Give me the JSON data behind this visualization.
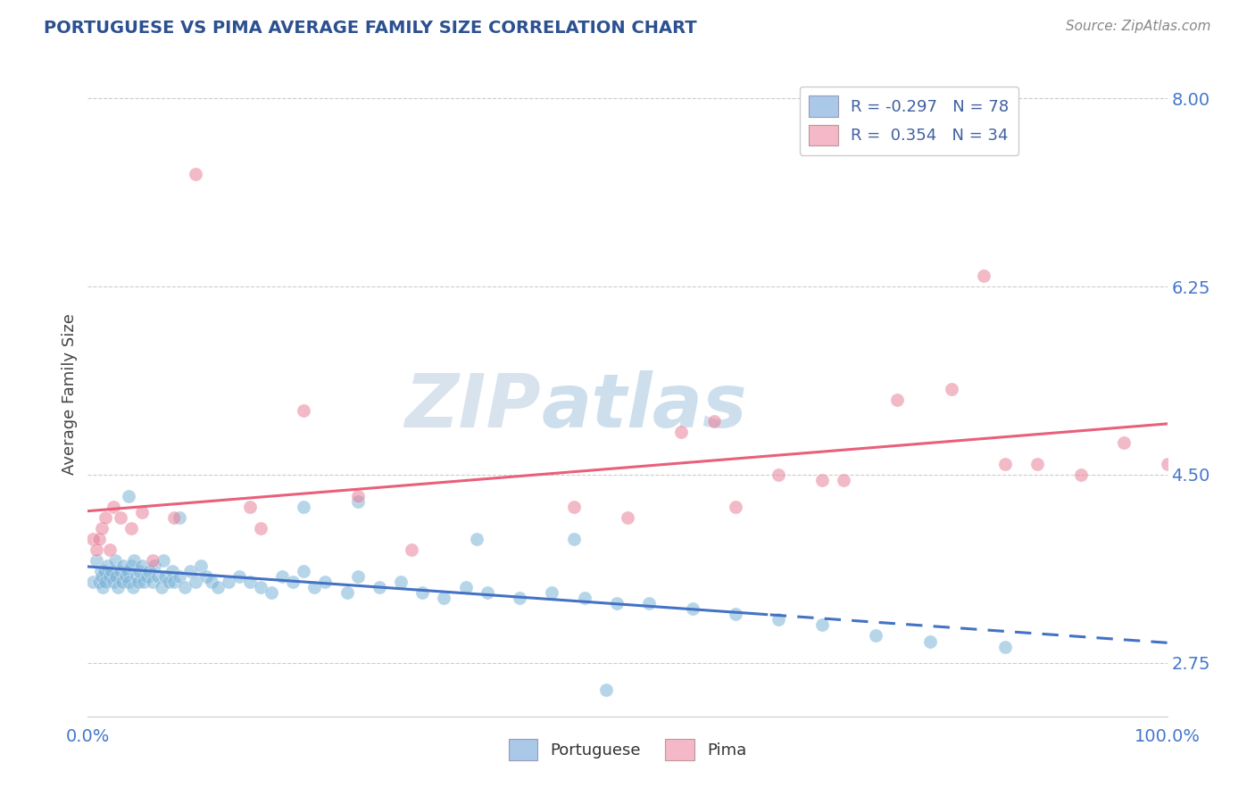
{
  "title": "PORTUGUESE VS PIMA AVERAGE FAMILY SIZE CORRELATION CHART",
  "source_text": "Source: ZipAtlas.com",
  "ylabel": "Average Family Size",
  "xlim": [
    0,
    1
  ],
  "ylim": [
    2.25,
    8.25
  ],
  "yticks": [
    2.75,
    4.5,
    6.25,
    8.0
  ],
  "yticklabels": [
    "2.75",
    "4.50",
    "6.25",
    "8.00"
  ],
  "xticks": [
    0.0,
    1.0
  ],
  "xticklabels": [
    "0.0%",
    "100.0%"
  ],
  "watermark_zip": "ZIP",
  "watermark_atlas": "atlas",
  "legend_label_blue": "R = -0.297   N = 78",
  "legend_label_pink": "R =  0.354   N = 34",
  "blue_scatter_color": "#7ab3d8",
  "pink_scatter_color": "#e8809a",
  "blue_legend_color": "#aac8e8",
  "pink_legend_color": "#f4b8c8",
  "blue_line_color": "#4472c4",
  "pink_line_color": "#e8607a",
  "title_color": "#2c5090",
  "source_color": "#888888",
  "axis_label_color": "#444444",
  "tick_color": "#4477cc",
  "grid_color": "#cccccc",
  "background_color": "#ffffff",
  "blue_scatter_alpha": 0.55,
  "pink_scatter_alpha": 0.55,
  "dot_size": 120,
  "line_width": 2.2,
  "solid_to_dash_split": 0.63,
  "blue_x": [
    0.005,
    0.008,
    0.01,
    0.012,
    0.013,
    0.014,
    0.015,
    0.016,
    0.018,
    0.02,
    0.022,
    0.024,
    0.025,
    0.026,
    0.028,
    0.03,
    0.032,
    0.033,
    0.035,
    0.037,
    0.038,
    0.04,
    0.042,
    0.043,
    0.045,
    0.047,
    0.048,
    0.05,
    0.052,
    0.055,
    0.057,
    0.06,
    0.062,
    0.065,
    0.068,
    0.07,
    0.072,
    0.075,
    0.078,
    0.08,
    0.085,
    0.09,
    0.095,
    0.1,
    0.105,
    0.11,
    0.115,
    0.12,
    0.13,
    0.14,
    0.15,
    0.16,
    0.17,
    0.18,
    0.19,
    0.2,
    0.21,
    0.22,
    0.24,
    0.25,
    0.27,
    0.29,
    0.31,
    0.33,
    0.35,
    0.37,
    0.4,
    0.43,
    0.46,
    0.49,
    0.52,
    0.56,
    0.6,
    0.64,
    0.68,
    0.73,
    0.78,
    0.85
  ],
  "blue_y": [
    3.5,
    3.7,
    3.5,
    3.6,
    3.55,
    3.45,
    3.6,
    3.5,
    3.65,
    3.55,
    3.6,
    3.5,
    3.7,
    3.55,
    3.45,
    3.6,
    3.5,
    3.65,
    3.55,
    3.6,
    3.5,
    3.65,
    3.45,
    3.7,
    3.55,
    3.5,
    3.6,
    3.65,
    3.5,
    3.55,
    3.6,
    3.5,
    3.65,
    3.55,
    3.45,
    3.7,
    3.55,
    3.5,
    3.6,
    3.5,
    3.55,
    3.45,
    3.6,
    3.5,
    3.65,
    3.55,
    3.5,
    3.45,
    3.5,
    3.55,
    3.5,
    3.45,
    3.4,
    3.55,
    3.5,
    3.6,
    3.45,
    3.5,
    3.4,
    3.55,
    3.45,
    3.5,
    3.4,
    3.35,
    3.45,
    3.4,
    3.35,
    3.4,
    3.35,
    3.3,
    3.3,
    3.25,
    3.2,
    3.15,
    3.1,
    3.0,
    2.95,
    2.9
  ],
  "blue_outliers_x": [
    0.038,
    0.085,
    0.2,
    0.25,
    0.36,
    0.45,
    0.48
  ],
  "blue_outliers_y": [
    4.3,
    4.1,
    4.2,
    4.25,
    3.9,
    3.9,
    2.5
  ],
  "pink_x": [
    0.005,
    0.008,
    0.01,
    0.013,
    0.016,
    0.02,
    0.024,
    0.03,
    0.04,
    0.05,
    0.06,
    0.08,
    0.1,
    0.15,
    0.16,
    0.2,
    0.25,
    0.3,
    0.45,
    0.5,
    0.55,
    0.58,
    0.6,
    0.64,
    0.68,
    0.7,
    0.75,
    0.8,
    0.83,
    0.85,
    0.88,
    0.92,
    0.96,
    1.0
  ],
  "pink_y": [
    3.9,
    3.8,
    3.9,
    4.0,
    4.1,
    3.8,
    4.2,
    4.1,
    4.0,
    4.15,
    3.7,
    4.1,
    7.3,
    4.2,
    4.0,
    5.1,
    4.3,
    3.8,
    4.2,
    4.1,
    4.9,
    5.0,
    4.2,
    4.5,
    4.45,
    4.45,
    5.2,
    5.3,
    6.35,
    4.6,
    4.6,
    4.5,
    4.8,
    4.6
  ]
}
